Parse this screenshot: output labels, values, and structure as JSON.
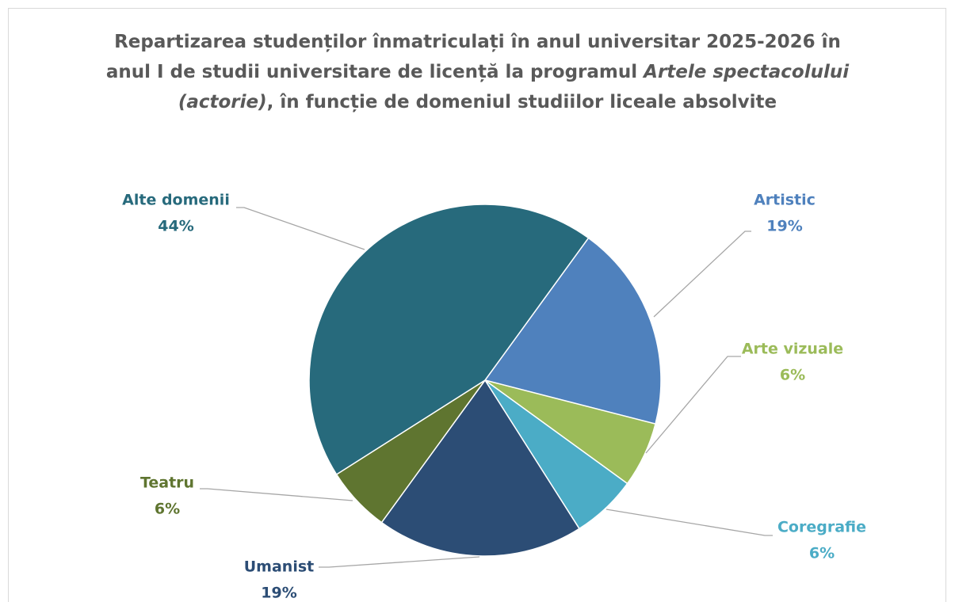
{
  "chart_data": {
    "type": "pie",
    "title": [
      "Repartizarea studenților înmatriculați în anul universitar 2025-2026 în anul I de studii universitare de licență la programul ",
      "Artele spectacolului (actorie)",
      ", în funcție de domeniul studiilor liceale absolvite"
    ],
    "categories": [
      "Artistic",
      "Arte vizuale",
      "Coregrafie",
      "Umanist",
      "Teatru",
      "Alte domenii"
    ],
    "values": [
      19,
      6,
      6,
      19,
      6,
      44
    ],
    "value_labels": [
      "19%",
      "6%",
      "6%",
      "19%",
      "6%",
      "44%"
    ],
    "colors": [
      "#4f81bd",
      "#9bbb59",
      "#4bacc6",
      "#2c4d75",
      "#5f7530",
      "#276a7c"
    ]
  }
}
